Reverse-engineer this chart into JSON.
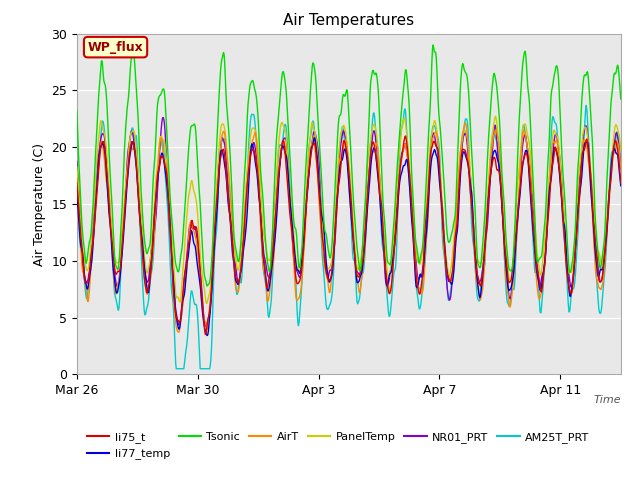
{
  "title": "Air Temperatures",
  "xlabel": "Time",
  "ylabel": "Air Temperature (C)",
  "ylim": [
    0,
    30
  ],
  "yticks": [
    0,
    5,
    10,
    15,
    20,
    25,
    30
  ],
  "xtick_labels": [
    "Mar 26",
    "Mar 30",
    "Apr 3",
    "Apr 7",
    "Apr 11"
  ],
  "bg_color": "#e8e8e8",
  "series_colors": {
    "li75_t": "#dd0000",
    "li77_temp": "#0000dd",
    "Tsonic": "#00dd00",
    "AirT": "#ff8800",
    "PanelTemp": "#cccc00",
    "NR01_PRT": "#8800cc",
    "AM25T_PRT": "#00cccc"
  },
  "legend_label": "WP_flux",
  "legend_box_facecolor": "#ffffcc",
  "legend_box_edgecolor": "#cc0000"
}
